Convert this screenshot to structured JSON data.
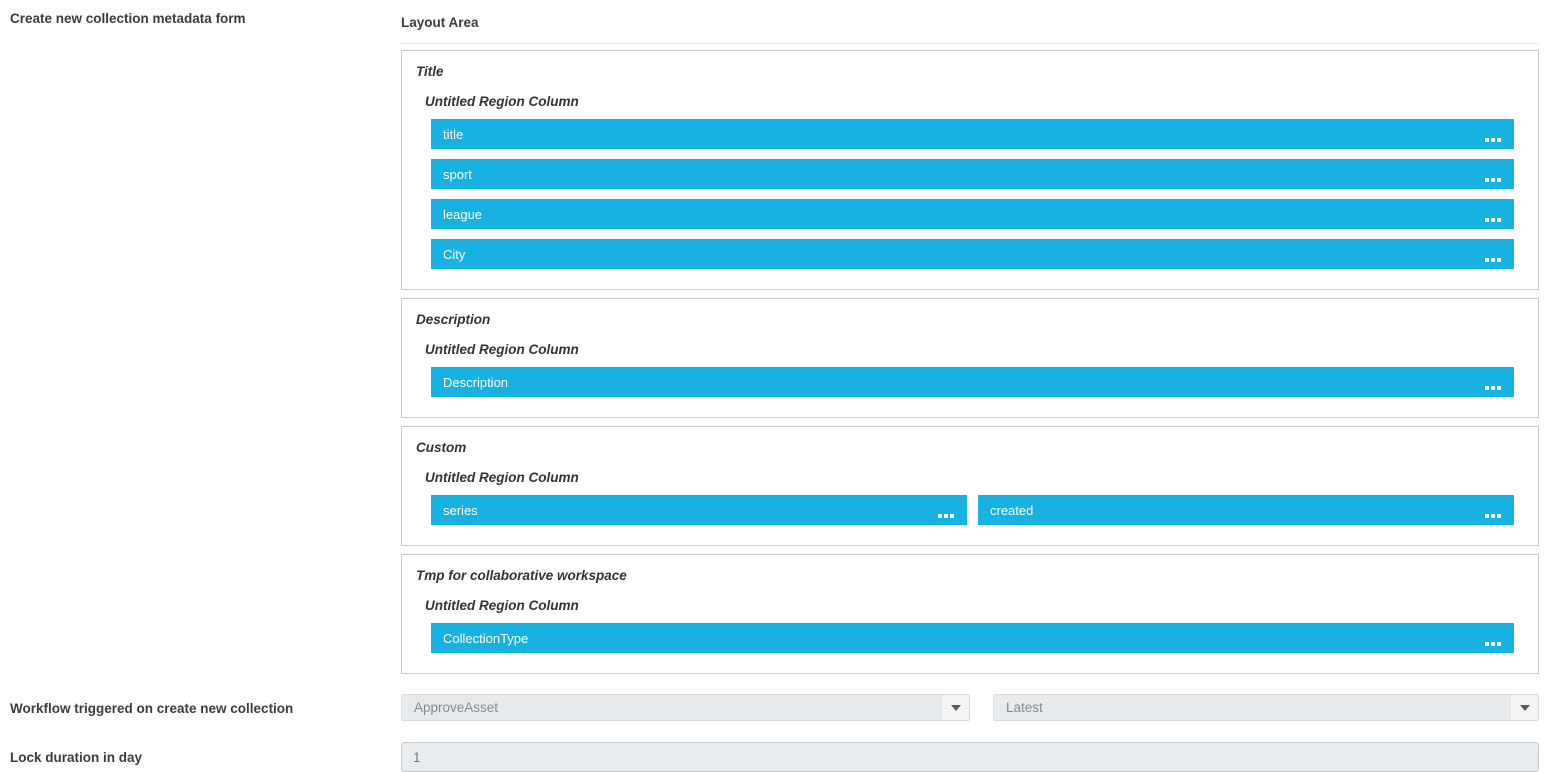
{
  "labels": {
    "form": "Create new collection metadata form",
    "layout_area": "Layout Area",
    "workflow": "Workflow triggered on create new collection",
    "lock_duration": "Lock duration in day"
  },
  "sections": [
    {
      "title": "Title",
      "column_label": "Untitled Region Column",
      "fields": [
        "title",
        "sport",
        "league",
        "City"
      ]
    },
    {
      "title": "Description",
      "column_label": "Untitled Region Column",
      "fields": [
        "Description"
      ]
    },
    {
      "title": "Custom",
      "column_label": "Untitled Region Column",
      "fields": [
        "series",
        "created"
      ]
    },
    {
      "title": "Tmp for collaborative workspace",
      "column_label": "Untitled Region Column",
      "fields": [
        "CollectionType"
      ]
    }
  ],
  "workflow": {
    "workflow_select": "ApproveAsset",
    "version_select": "Latest"
  },
  "lock_duration": {
    "value": "1"
  },
  "colors": {
    "field_bar": "#17b1e2",
    "field_bar_text": "#ffffff",
    "select_bg": "#e7eaec",
    "input_bg": "#e9ecef"
  }
}
